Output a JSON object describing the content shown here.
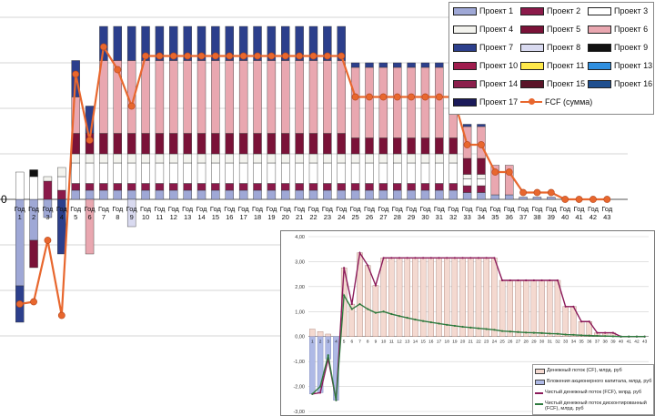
{
  "chart_data": [
    {
      "type": "bar",
      "stacked": true,
      "y_zero_label": "0",
      "categories": [
        "Год 1",
        "Год 2",
        "Год 3",
        "Год 4",
        "Год 5",
        "Год 6",
        "Год 7",
        "Год 8",
        "Год 9",
        "Год 10",
        "Год 11",
        "Год 12",
        "Год 13",
        "Год 14",
        "Год 15",
        "Год 16",
        "Год 17",
        "Год 18",
        "Год 19",
        "Год 20",
        "Год 21",
        "Год 22",
        "Год 23",
        "Год 24",
        "Год 25",
        "Год 26",
        "Год 27",
        "Год 28",
        "Год 29",
        "Год 30",
        "Год 31",
        "Год 32",
        "Год 33",
        "Год 34",
        "Год 35",
        "Год 36",
        "Год 37",
        "Год 38",
        "Год 39",
        "Год 40",
        "Год 41",
        "Год 42",
        "Год 43"
      ],
      "grid": true,
      "legend_position": "top-right",
      "series": [
        {
          "name": "Проект 1",
          "color": "#9fa8d6",
          "values": [
            -1.9,
            -0.9,
            -0.4,
            0,
            0.2,
            0.2,
            0.2,
            0.2,
            0.2,
            0.2,
            0.2,
            0.2,
            0.2,
            0.2,
            0.2,
            0.2,
            0.2,
            0.2,
            0.2,
            0.2,
            0.2,
            0.2,
            0.2,
            0.2,
            0.2,
            0.2,
            0.2,
            0.2,
            0.2,
            0.2,
            0.2,
            0.2,
            0.15,
            0.15,
            0.1,
            0.1,
            0.05,
            0.05,
            0.05,
            0,
            0,
            0,
            0
          ]
        },
        {
          "name": "Проект 2",
          "color": "#8b1a4a",
          "values": [
            0,
            0,
            0.4,
            0.2,
            0.15,
            0.15,
            0.15,
            0.15,
            0.15,
            0.15,
            0.15,
            0.15,
            0.15,
            0.15,
            0.15,
            0.15,
            0.15,
            0.15,
            0.15,
            0.15,
            0.15,
            0.15,
            0.15,
            0.15,
            0.15,
            0.15,
            0.15,
            0.15,
            0.15,
            0.15,
            0.15,
            0.15,
            0.15,
            0.15,
            0,
            0,
            0,
            0,
            0,
            0,
            0,
            0,
            0
          ]
        },
        {
          "name": "Проект 3",
          "color": "#ffffff",
          "values": [
            0.6,
            0.5,
            0,
            0.3,
            0.45,
            0.45,
            0.45,
            0.45,
            0.45,
            0.45,
            0.45,
            0.45,
            0.45,
            0.45,
            0.45,
            0.45,
            0.45,
            0.45,
            0.45,
            0.45,
            0.45,
            0.45,
            0.45,
            0.45,
            0.45,
            0.45,
            0.45,
            0.45,
            0.45,
            0.45,
            0.45,
            0.45,
            0.15,
            0.15,
            0,
            0,
            0,
            0,
            0,
            0,
            0,
            0,
            0
          ]
        },
        {
          "name": "Проект 4",
          "color": "#f3f3ee",
          "values": [
            0,
            0,
            0.1,
            0.2,
            0.2,
            0.2,
            0.2,
            0.2,
            0.2,
            0.2,
            0.2,
            0.2,
            0.2,
            0.2,
            0.2,
            0.2,
            0.2,
            0.2,
            0.2,
            0.2,
            0.2,
            0.2,
            0.2,
            0.2,
            0.2,
            0.2,
            0.2,
            0.2,
            0.2,
            0.2,
            0.2,
            0.2,
            0.1,
            0.1,
            0,
            0,
            0,
            0,
            0,
            0,
            0,
            0,
            0
          ]
        },
        {
          "name": "Проект 5",
          "color": "#7a1238",
          "values": [
            0,
            -0.6,
            0,
            0,
            0.45,
            0.45,
            0.45,
            0.45,
            0.45,
            0.45,
            0.45,
            0.45,
            0.45,
            0.45,
            0.45,
            0.45,
            0.45,
            0.45,
            0.45,
            0.45,
            0.45,
            0.45,
            0.45,
            0.45,
            0.35,
            0.35,
            0.35,
            0.35,
            0.35,
            0.35,
            0.35,
            0.35,
            0.35,
            0.35,
            0,
            0,
            0,
            0,
            0,
            0,
            0,
            0,
            0
          ]
        },
        {
          "name": "Проект 6",
          "color": "#e9a7b0",
          "values": [
            0,
            0,
            0,
            0,
            0.8,
            -1.2,
            1.6,
            1.6,
            1.6,
            1.6,
            1.6,
            1.6,
            1.6,
            1.6,
            1.6,
            1.6,
            1.6,
            1.6,
            1.6,
            1.6,
            1.6,
            1.6,
            1.6,
            1.6,
            1.55,
            1.55,
            1.55,
            1.55,
            1.55,
            1.55,
            1.55,
            1.55,
            0.7,
            0.7,
            0.65,
            0.65,
            0,
            0,
            0,
            0,
            0,
            0,
            0
          ]
        },
        {
          "name": "Проект 7",
          "color": "#2c3f8c",
          "values": [
            -0.8,
            0,
            0,
            -1.2,
            0.8,
            0.6,
            0.75,
            0.75,
            0.75,
            0.75,
            0.75,
            0.75,
            0.75,
            0.75,
            0.75,
            0.75,
            0.75,
            0.75,
            0.75,
            0.75,
            0.75,
            0.75,
            0.75,
            0.75,
            0.1,
            0.1,
            0.1,
            0.1,
            0.1,
            0.1,
            0.1,
            0.1,
            0.05,
            0.05,
            0,
            0,
            0,
            0,
            0,
            0,
            0,
            0,
            0
          ]
        },
        {
          "name": "Проект 8",
          "color": "#d9daf0",
          "values": [
            0,
            0,
            0,
            0,
            0,
            0,
            0,
            0,
            -0.6,
            0,
            0,
            0,
            0,
            0,
            0,
            0,
            0,
            0,
            0,
            0,
            0,
            0,
            0,
            0,
            0,
            0,
            0,
            0,
            0,
            0,
            0,
            0,
            0,
            0,
            0,
            0,
            0,
            0,
            0,
            0,
            0,
            0,
            0
          ]
        },
        {
          "name": "Проект 9",
          "color": "#111111",
          "values": [
            0,
            0.15,
            0,
            0,
            0,
            0,
            0,
            0,
            0,
            0,
            0,
            0,
            0,
            0,
            0,
            0,
            0,
            0,
            0,
            0,
            0,
            0,
            0,
            0,
            0,
            0,
            0,
            0,
            0,
            0,
            0,
            0,
            0,
            0,
            0,
            0,
            0,
            0,
            0,
            0,
            0,
            0,
            0
          ]
        },
        {
          "name": "Проект 10",
          "color": "#a01d4e",
          "values": [
            0,
            0,
            0,
            0,
            0,
            0,
            0,
            0,
            0,
            0,
            0,
            0,
            0,
            0,
            0,
            0,
            0,
            0,
            0,
            0,
            0,
            0,
            0,
            0,
            0,
            0,
            0,
            0,
            0,
            0,
            0,
            0,
            0,
            0,
            0,
            0,
            0,
            0,
            0,
            0,
            0,
            0,
            0
          ]
        },
        {
          "name": "Проект 11",
          "color": "#ffe94a",
          "values": [
            0,
            0,
            0,
            0,
            0,
            0,
            0,
            0,
            0,
            0,
            0,
            0,
            0,
            0,
            0,
            0,
            0,
            0,
            0,
            0,
            0,
            0,
            0,
            0,
            0,
            0,
            0,
            0,
            0,
            0,
            0,
            0,
            0,
            0,
            0,
            0,
            0,
            0,
            0,
            0,
            0,
            0,
            0
          ]
        },
        {
          "name": "Проект 13",
          "color": "#2f8fe0",
          "values": [
            0,
            0,
            0,
            0,
            0,
            0,
            0,
            0,
            0,
            0,
            0,
            0,
            0,
            0,
            0,
            0,
            0,
            0,
            0,
            0,
            0,
            0,
            0,
            0,
            0,
            0,
            0,
            0,
            0,
            0,
            0,
            0,
            0,
            0,
            0,
            0,
            0,
            0,
            0,
            0,
            0,
            0,
            0
          ]
        },
        {
          "name": "Проект 14",
          "color": "#8c1f4c",
          "values": [
            0,
            0,
            0,
            0,
            0,
            0,
            0,
            0,
            0,
            0,
            0,
            0,
            0,
            0,
            0,
            0,
            0,
            0,
            0,
            0,
            0,
            0,
            0,
            0,
            0,
            0,
            0,
            0,
            0,
            0,
            0,
            0,
            0,
            0,
            0,
            0,
            0,
            0,
            0,
            0,
            0,
            0,
            0
          ]
        },
        {
          "name": "Проект 15",
          "color": "#5a1428",
          "values": [
            0,
            0,
            0,
            0,
            0,
            0,
            0,
            0,
            0,
            0,
            0,
            0,
            0,
            0,
            0,
            0,
            0,
            0,
            0,
            0,
            0,
            0,
            0,
            0,
            0,
            0,
            0,
            0,
            0,
            0,
            0,
            0,
            0,
            0,
            0,
            0,
            0,
            0,
            0,
            0,
            0,
            0,
            0
          ]
        },
        {
          "name": "Проект 16",
          "color": "#1f4f8f",
          "values": [
            0,
            0,
            0,
            0,
            0,
            0,
            0,
            0,
            0,
            0,
            0,
            0,
            0,
            0,
            0,
            0,
            0,
            0,
            0,
            0,
            0,
            0,
            0,
            0,
            0,
            0,
            0,
            0,
            0,
            0,
            0,
            0,
            0,
            0,
            0,
            0,
            0,
            0,
            0,
            0,
            0,
            0,
            0
          ]
        },
        {
          "name": "Проект 17",
          "color": "#1b1a5a",
          "values": [
            0,
            0,
            0,
            0,
            0,
            0,
            0,
            0,
            0,
            0,
            0,
            0,
            0,
            0,
            0,
            0,
            0,
            0,
            0,
            0,
            0,
            0,
            0,
            0,
            0,
            0,
            0,
            0,
            0,
            0,
            0,
            0,
            0,
            0,
            0,
            0,
            0,
            0,
            0,
            0,
            0,
            0,
            0
          ]
        }
      ],
      "line_series": {
        "name": "FCF (сумма)",
        "color": "#e8672e",
        "values": [
          -2.3,
          -2.25,
          -0.9,
          -2.55,
          2.75,
          1.3,
          3.35,
          2.85,
          2.05,
          3.15,
          3.15,
          3.15,
          3.15,
          3.15,
          3.15,
          3.15,
          3.15,
          3.15,
          3.15,
          3.15,
          3.15,
          3.15,
          3.15,
          3.15,
          2.25,
          2.25,
          2.25,
          2.25,
          2.25,
          2.25,
          2.25,
          2.25,
          1.2,
          1.2,
          0.6,
          0.6,
          0.15,
          0.15,
          0.15,
          0,
          0,
          0,
          0
        ]
      },
      "ylim": [
        -3.6,
        4.0
      ]
    },
    {
      "type": "bar",
      "categories": [
        "1",
        "2",
        "3",
        "4",
        "5",
        "6",
        "7",
        "8",
        "9",
        "10",
        "11",
        "12",
        "13",
        "14",
        "15",
        "16",
        "17",
        "18",
        "19",
        "20",
        "21",
        "22",
        "23",
        "24",
        "25",
        "26",
        "27",
        "28",
        "29",
        "30",
        "31",
        "32",
        "33",
        "34",
        "35",
        "36",
        "37",
        "38",
        "39",
        "40",
        "41",
        "42",
        "43"
      ],
      "y_ticks": [
        "4,00",
        "3,00",
        "2,00",
        "1,00",
        "0,00",
        "-1,00",
        "-2,00",
        "-3,00"
      ],
      "ylim": [
        -3,
        4
      ],
      "grid": true,
      "legend_position": "bottom-right",
      "series": [
        {
          "name": "Денежный поток (CF), млрд. руб",
          "color": "#f4d9d0",
          "values": [
            0.3,
            0.2,
            0.1,
            0,
            2.75,
            1.3,
            3.35,
            2.85,
            2.05,
            3.15,
            3.15,
            3.15,
            3.15,
            3.15,
            3.15,
            3.15,
            3.15,
            3.15,
            3.15,
            3.15,
            3.15,
            3.15,
            3.15,
            3.15,
            2.25,
            2.25,
            2.25,
            2.25,
            2.25,
            2.25,
            2.25,
            2.25,
            1.2,
            1.2,
            0.6,
            0.6,
            0.15,
            0.15,
            0.15,
            0,
            0,
            0,
            0
          ]
        },
        {
          "name": "Вложения акционерного капитала, млрд. руб",
          "color": "#aeb9e6",
          "values": [
            -2.3,
            -2.25,
            -0.9,
            -2.55,
            0,
            0,
            0,
            0,
            0,
            0,
            0,
            0,
            0,
            0,
            0,
            0,
            0,
            0,
            0,
            0,
            0,
            0,
            0,
            0,
            0,
            0,
            0,
            0,
            0,
            0,
            0,
            0,
            0,
            0,
            0,
            0,
            0,
            0,
            0,
            0,
            0,
            0,
            0
          ]
        },
        {
          "name": "Чистый денежный поток (FCF), млрд. руб",
          "color": "#8b1a5a",
          "type": "line",
          "values": [
            -2.3,
            -2.25,
            -0.9,
            -2.55,
            2.75,
            1.3,
            3.35,
            2.85,
            2.05,
            3.15,
            3.15,
            3.15,
            3.15,
            3.15,
            3.15,
            3.15,
            3.15,
            3.15,
            3.15,
            3.15,
            3.15,
            3.15,
            3.15,
            3.15,
            2.25,
            2.25,
            2.25,
            2.25,
            2.25,
            2.25,
            2.25,
            2.25,
            1.2,
            1.2,
            0.6,
            0.6,
            0.15,
            0.15,
            0.15,
            0,
            0,
            0,
            0
          ]
        },
        {
          "name": "Чистый денежный поток дисконтированный (FCF), млрд. руб",
          "color": "#2e7a3e",
          "type": "line",
          "values": [
            -2.3,
            -2.0,
            -0.75,
            -2.55,
            1.65,
            1.1,
            1.3,
            1.1,
            0.95,
            1.0,
            0.9,
            0.82,
            0.75,
            0.68,
            0.62,
            0.57,
            0.52,
            0.47,
            0.43,
            0.39,
            0.36,
            0.33,
            0.3,
            0.27,
            0.22,
            0.2,
            0.18,
            0.16,
            0.15,
            0.14,
            0.12,
            0.11,
            0.08,
            0.07,
            0.05,
            0.04,
            0.03,
            0.02,
            0.01,
            0,
            0,
            0,
            0
          ]
        }
      ]
    }
  ]
}
